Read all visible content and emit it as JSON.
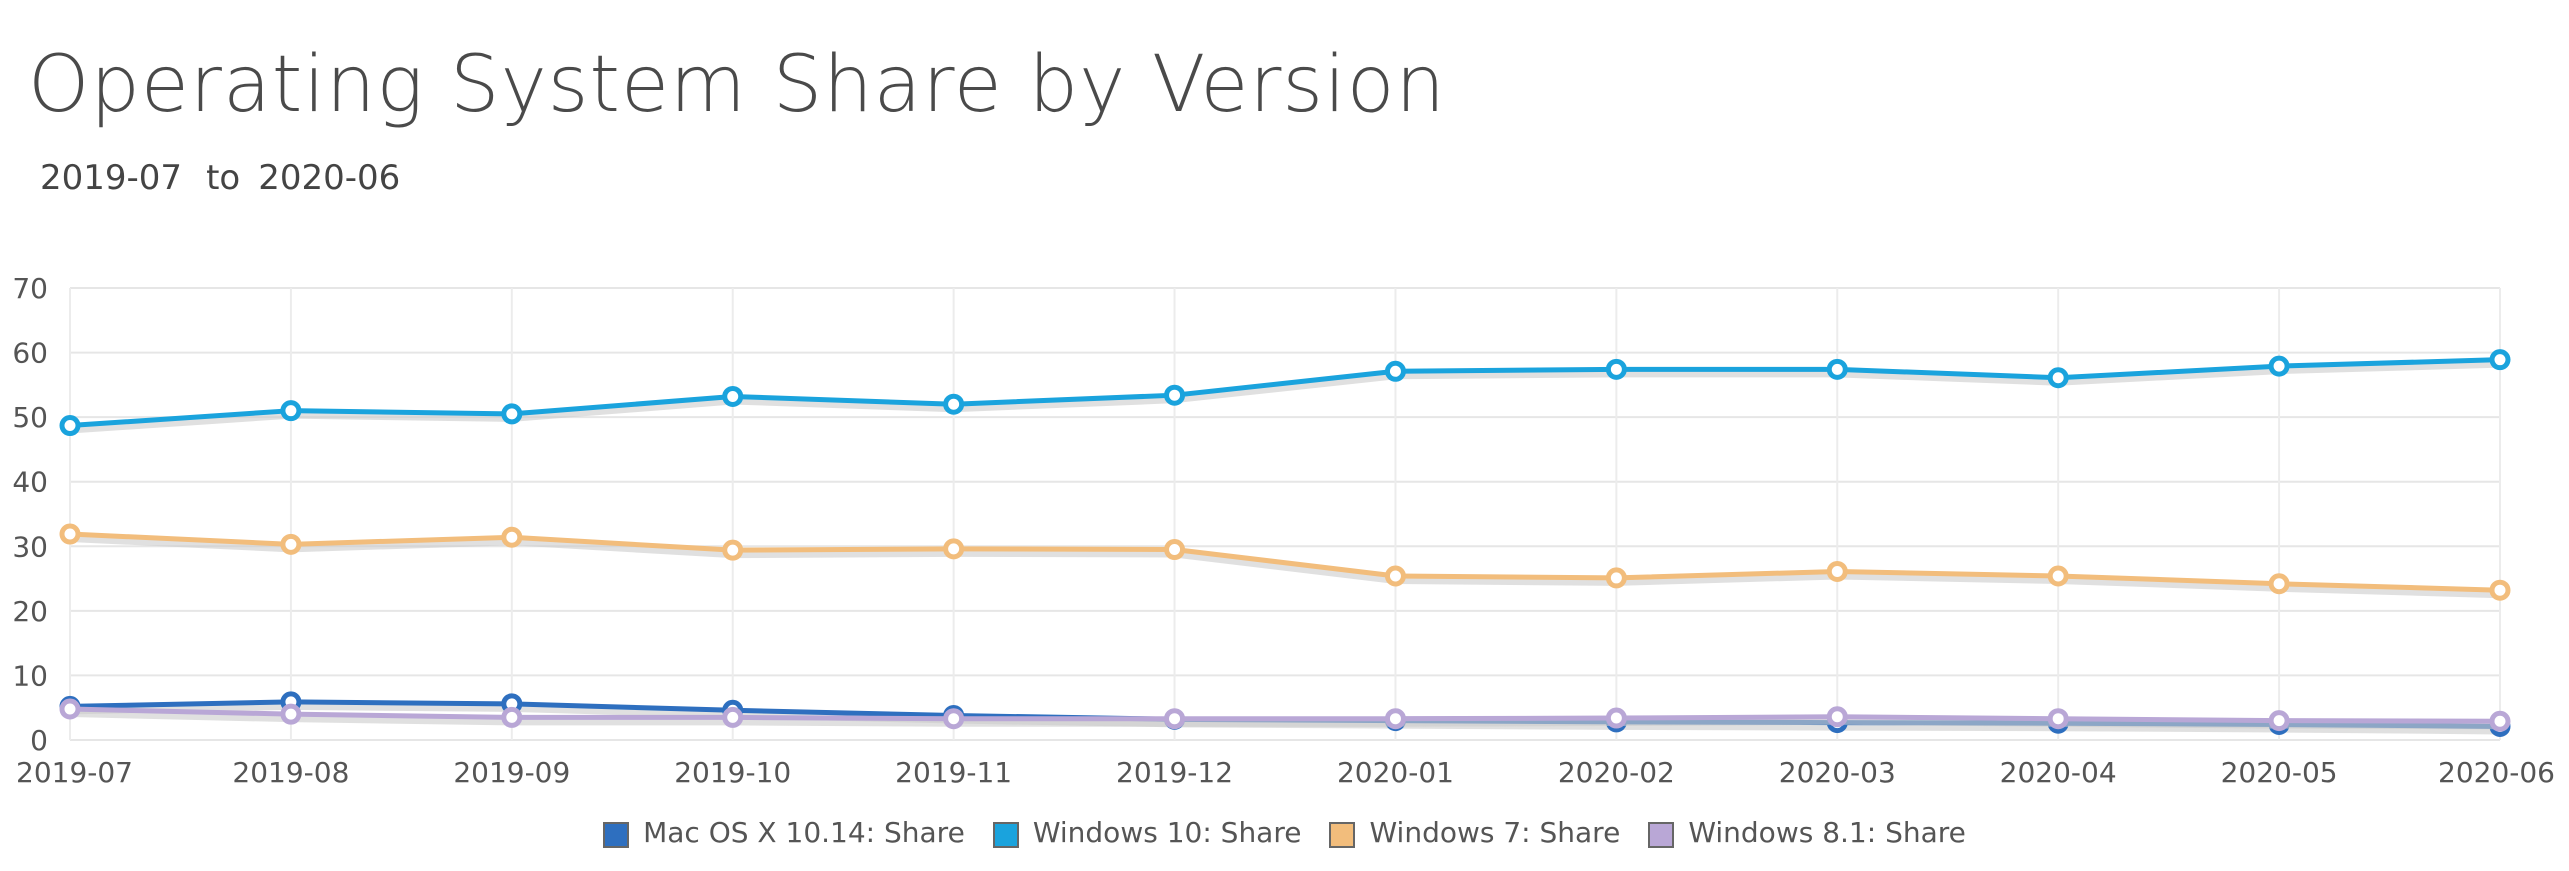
{
  "title": "Operating System Share by Version",
  "range": {
    "from": "2019-07",
    "sep": "to",
    "to": "2020-06"
  },
  "chart_data": {
    "type": "line",
    "x": [
      "2019-07",
      "2019-08",
      "2019-09",
      "2019-10",
      "2019-11",
      "2019-12",
      "2020-01",
      "2020-02",
      "2020-03",
      "2020-04",
      "2020-05",
      "2020-06"
    ],
    "ylim": [
      0,
      70
    ],
    "yticks": [
      0,
      10,
      20,
      30,
      40,
      50,
      60,
      70
    ],
    "grid": true,
    "legend_position": "bottom",
    "series": [
      {
        "name": "Mac OS X 10.14: Share",
        "color": "#2e6fbf",
        "values": [
          5.2,
          5.9,
          5.6,
          4.6,
          3.8,
          3.2,
          3.0,
          2.8,
          2.7,
          2.6,
          2.4,
          2.1
        ]
      },
      {
        "name": "Windows 10: Share",
        "color": "#1aa3dd",
        "values": [
          48.7,
          51.0,
          50.5,
          53.2,
          52.0,
          53.4,
          57.1,
          57.4,
          57.4,
          56.1,
          57.9,
          58.9
        ]
      },
      {
        "name": "Windows 7: Share",
        "color": "#f2bd7c",
        "values": [
          31.9,
          30.3,
          31.4,
          29.4,
          29.6,
          29.5,
          25.4,
          25.1,
          26.1,
          25.4,
          24.2,
          23.2
        ]
      },
      {
        "name": "Windows 8.1: Share",
        "color": "#b9a7d6",
        "values": [
          4.8,
          4.0,
          3.5,
          3.5,
          3.3,
          3.3,
          3.3,
          3.4,
          3.6,
          3.3,
          3.0,
          2.9
        ]
      }
    ]
  }
}
